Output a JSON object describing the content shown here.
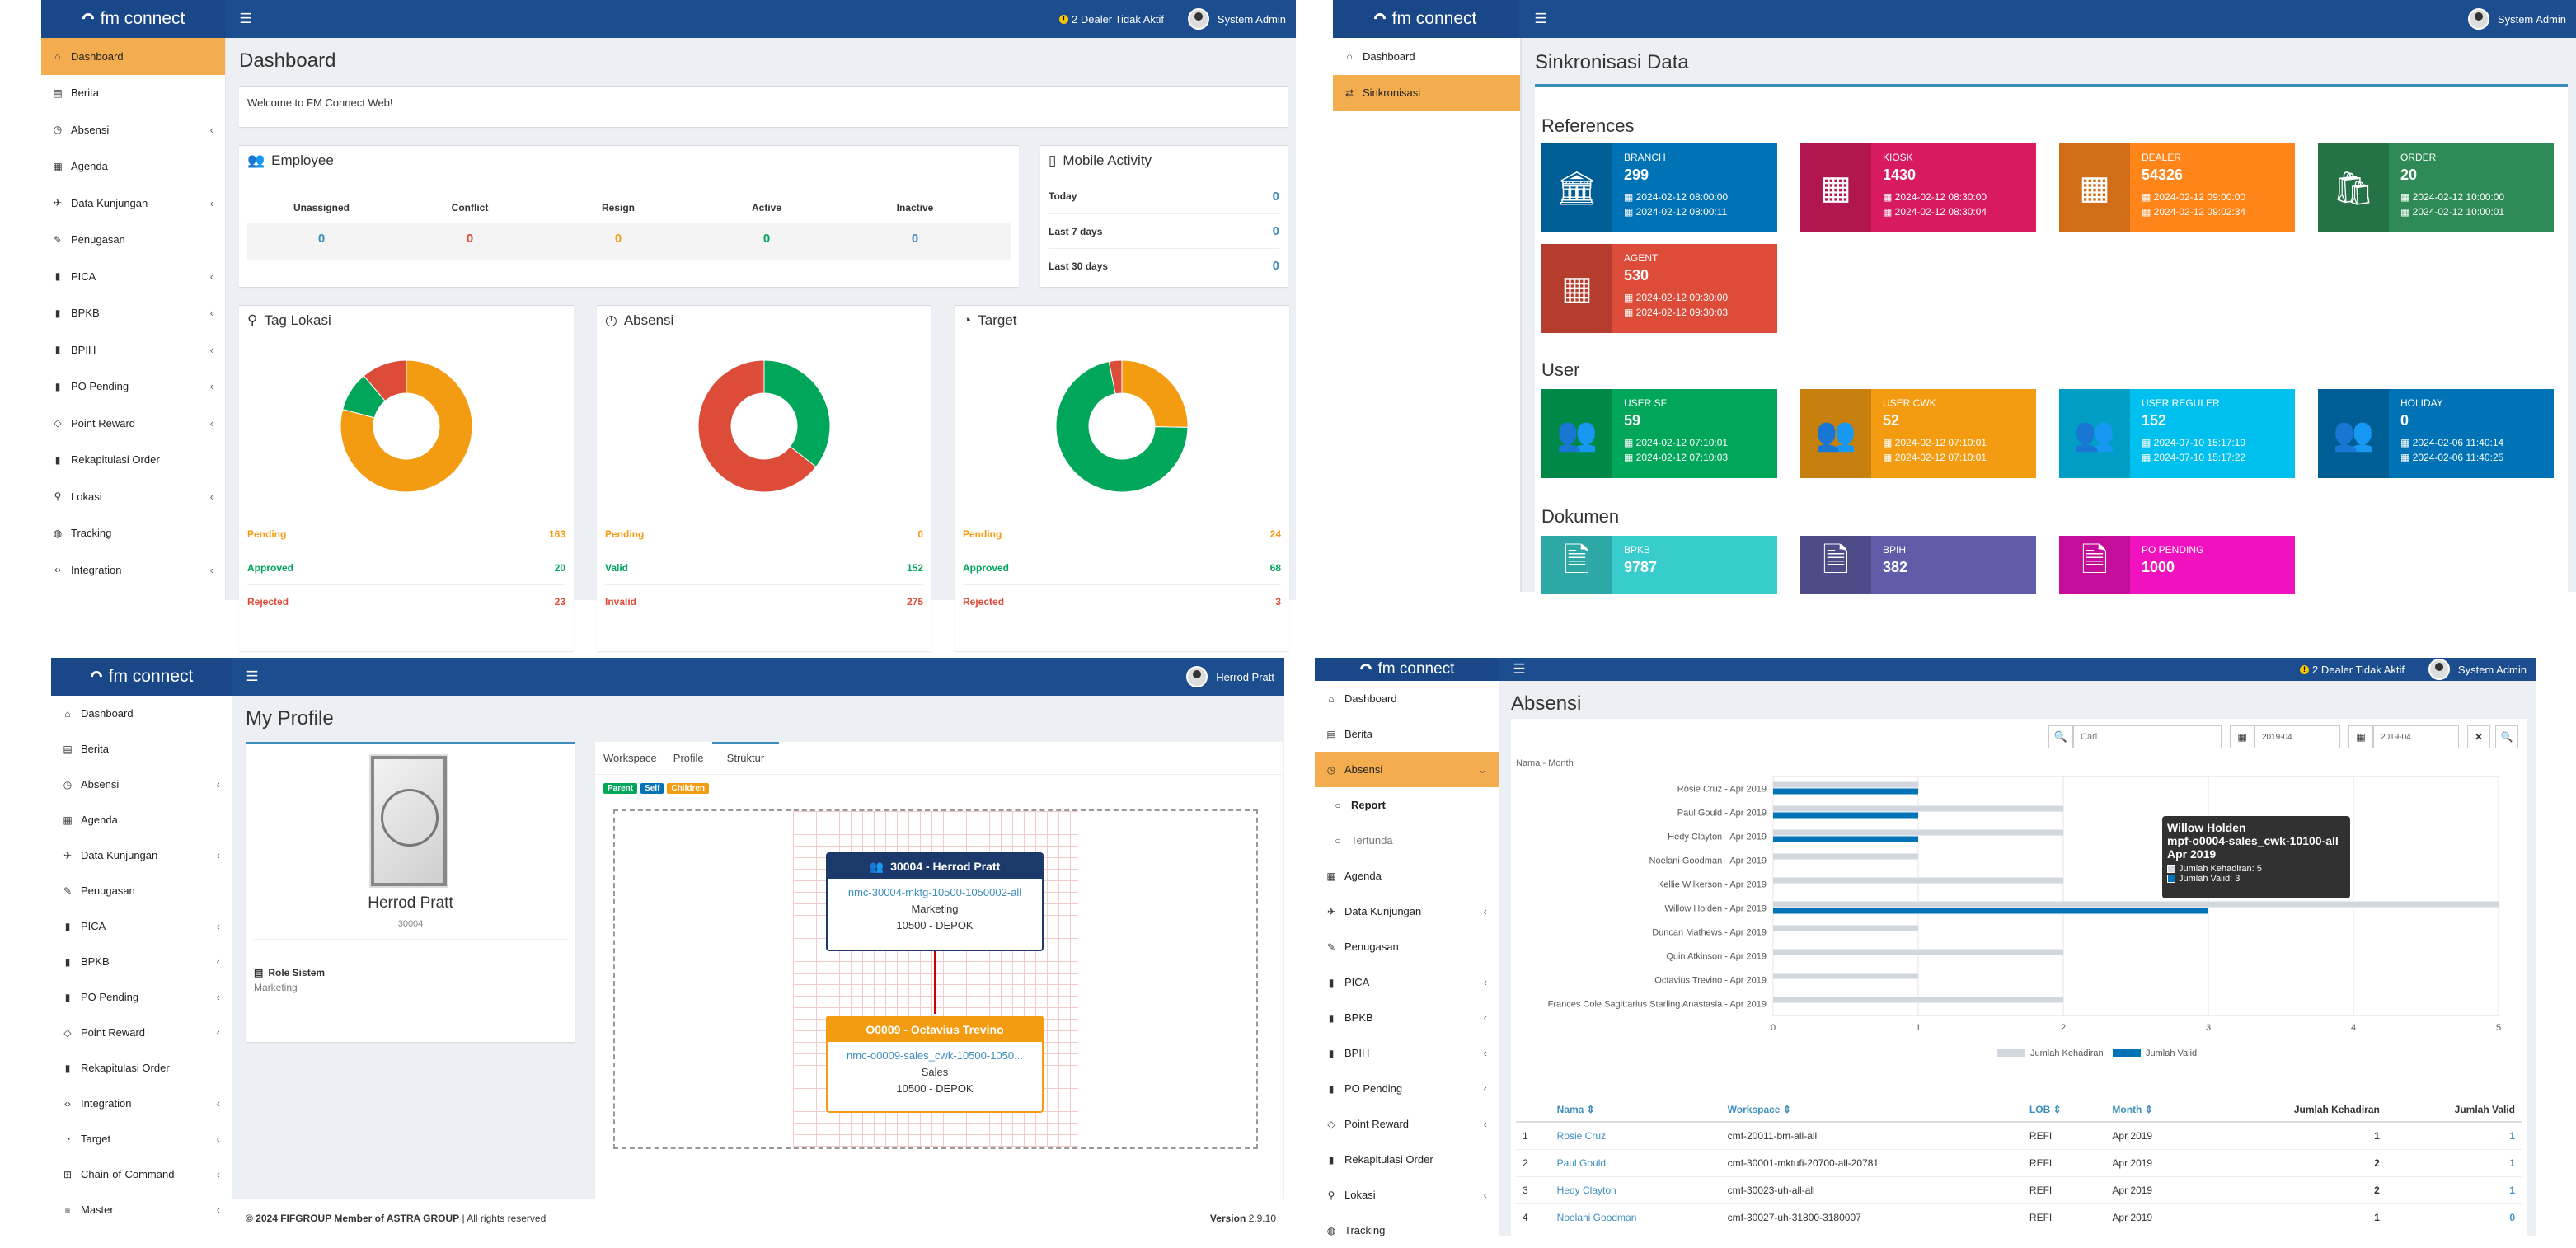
{
  "brand": "fm connect",
  "dashboard": {
    "notif": "2 Dealer Tidak Aktif",
    "user": "System Admin",
    "menu": [
      {
        "label": "Dashboard",
        "icon": "home-icon",
        "chev": false,
        "active": true
      },
      {
        "label": "Berita",
        "icon": "newspaper-icon",
        "chev": false
      },
      {
        "label": "Absensi",
        "icon": "clock-icon",
        "chev": true
      },
      {
        "label": "Agenda",
        "icon": "calendar-icon",
        "chev": false
      },
      {
        "label": "Data Kunjungan",
        "icon": "plane-icon",
        "chev": true
      },
      {
        "label": "Penugasan",
        "icon": "edit-icon",
        "chev": false
      },
      {
        "label": "PICA",
        "icon": "book-icon",
        "chev": true
      },
      {
        "label": "BPKB",
        "icon": "book-icon",
        "chev": true
      },
      {
        "label": "BPIH",
        "icon": "book-icon",
        "chev": true
      },
      {
        "label": "PO Pending",
        "icon": "book-icon",
        "chev": true
      },
      {
        "label": "Point Reward",
        "icon": "diamond-icon",
        "chev": true
      },
      {
        "label": "Rekapitulasi Order",
        "icon": "book-icon",
        "chev": false
      },
      {
        "label": "Lokasi",
        "icon": "map-marker-icon",
        "chev": true
      },
      {
        "label": "Tracking",
        "icon": "globe-icon",
        "chev": false
      },
      {
        "label": "Integration",
        "icon": "code-icon",
        "chev": true
      }
    ],
    "title": "Dashboard",
    "welcome": "Welcome to FM Connect Web!",
    "employee": {
      "title": "Employee",
      "cols": [
        "Unassigned",
        "Conflict",
        "Resign",
        "Active",
        "Inactive"
      ],
      "values": [
        "0",
        "0",
        "0",
        "0",
        "0"
      ]
    },
    "mobile": {
      "title": "Mobile Activity",
      "rows": [
        {
          "label": "Today",
          "value": "0"
        },
        {
          "label": "Last 7 days",
          "value": "0"
        },
        {
          "label": "Last 30 days",
          "value": "0"
        }
      ]
    },
    "donuts": [
      {
        "title": "Tag Lokasi",
        "icon": "map-marker-icon",
        "slices": [
          {
            "label": "Pending",
            "value": 163,
            "color": "#f39c12"
          },
          {
            "label": "Approved",
            "value": 20,
            "color": "#00a65a"
          },
          {
            "label": "Rejected",
            "value": 23,
            "color": "#dd4b39"
          }
        ]
      },
      {
        "title": "Absensi",
        "icon": "clock-icon",
        "slices": [
          {
            "label": "Pending",
            "value": 0,
            "color": "#f39c12"
          },
          {
            "label": "Valid",
            "value": 152,
            "color": "#00a65a"
          },
          {
            "label": "Invalid",
            "value": 275,
            "color": "#dd4b39"
          }
        ]
      },
      {
        "title": "Target",
        "icon": "dashboard-icon",
        "slices": [
          {
            "label": "Pending",
            "value": 24,
            "color": "#f39c12"
          },
          {
            "label": "Approved",
            "value": 68,
            "color": "#00a65a"
          },
          {
            "label": "Rejected",
            "value": 3,
            "color": "#dd4b39"
          }
        ]
      }
    ]
  },
  "sync": {
    "user": "System Admin",
    "menu": [
      {
        "label": "Dashboard",
        "icon": "home-icon"
      },
      {
        "label": "Sinkronisasi",
        "icon": "exchange-icon",
        "active": true
      }
    ],
    "title": "Sinkronisasi Data",
    "sections": [
      {
        "title": "References",
        "tiles": [
          {
            "name": "BRANCH",
            "num": "299",
            "d1": "2024-02-12 08:00:00",
            "d2": "2024-02-12 08:00:11",
            "color": "#0073b7",
            "icon": "bank-icon"
          },
          {
            "name": "KIOSK",
            "num": "1430",
            "d1": "2024-02-12 08:30:00",
            "d2": "2024-02-12 08:30:04",
            "color": "#d81b60",
            "icon": "building-icon"
          },
          {
            "name": "DEALER",
            "num": "54326",
            "d1": "2024-02-12 09:00:00",
            "d2": "2024-02-12 09:02:34",
            "color": "#ff851b",
            "icon": "building-icon"
          },
          {
            "name": "ORDER",
            "num": "20",
            "d1": "2024-02-12 10:00:00",
            "d2": "2024-02-12 10:00:01",
            "color": "#2e8b57",
            "icon": "shopping-bag-icon"
          },
          {
            "name": "AGENT",
            "num": "530",
            "d1": "2024-02-12 09:30:00",
            "d2": "2024-02-12 09:30:03",
            "color": "#dd4b39",
            "icon": "building-icon"
          }
        ]
      },
      {
        "title": "User",
        "tiles": [
          {
            "name": "USER SF",
            "num": "59",
            "d1": "2024-02-12 07:10:01",
            "d2": "2024-02-12 07:10:03",
            "color": "#00a65a",
            "icon": "users-icon"
          },
          {
            "name": "USER CWK",
            "num": "52",
            "d1": "2024-02-12 07:10:01",
            "d2": "2024-02-12 07:10:01",
            "color": "#f39c12",
            "icon": "users-icon"
          },
          {
            "name": "USER REGULER",
            "num": "152",
            "d1": "2024-07-10 15:17:19",
            "d2": "2024-07-10 15:17:22",
            "color": "#00c0ef",
            "icon": "users-icon"
          },
          {
            "name": "HOLIDAY",
            "num": "0",
            "d1": "2024-02-06 11:40:14",
            "d2": "2024-02-06 11:40:25",
            "color": "#0073b7",
            "icon": "users-icon"
          }
        ]
      },
      {
        "title": "Dokumen",
        "tiles": [
          {
            "name": "BPKB",
            "num": "9787",
            "color": "#39cccc",
            "icon": "file-icon"
          },
          {
            "name": "BPIH",
            "num": "382",
            "color": "#605ca8",
            "icon": "file-icon"
          },
          {
            "name": "PO PENDING",
            "num": "1000",
            "color": "#f012be",
            "icon": "file-icon"
          }
        ]
      }
    ]
  },
  "profile": {
    "user": "Herrod Pratt",
    "menu": [
      {
        "label": "Dashboard",
        "icon": "home-icon"
      },
      {
        "label": "Berita",
        "icon": "newspaper-icon"
      },
      {
        "label": "Absensi",
        "icon": "clock-icon",
        "chev": true
      },
      {
        "label": "Agenda",
        "icon": "calendar-icon"
      },
      {
        "label": "Data Kunjungan",
        "icon": "plane-icon",
        "chev": true
      },
      {
        "label": "Penugasan",
        "icon": "edit-icon"
      },
      {
        "label": "PICA",
        "icon": "book-icon",
        "chev": true
      },
      {
        "label": "BPKB",
        "icon": "book-icon",
        "chev": true
      },
      {
        "label": "PO Pending",
        "icon": "book-icon",
        "chev": true
      },
      {
        "label": "Point Reward",
        "icon": "diamond-icon",
        "chev": true
      },
      {
        "label": "Rekapitulasi Order",
        "icon": "book-icon"
      },
      {
        "label": "Integration",
        "icon": "code-icon",
        "chev": true
      },
      {
        "label": "Target",
        "icon": "dashboard-icon",
        "chev": true
      },
      {
        "label": "Chain-of-Command",
        "icon": "sitemap-icon",
        "chev": true
      },
      {
        "label": "Master",
        "icon": "database-icon",
        "chev": true
      }
    ],
    "title": "My Profile",
    "name": "Herrod Pratt",
    "id": "30004",
    "role_label": "Role Sistem",
    "role_value": "Marketing",
    "tabs": [
      "Workspace",
      "Profile",
      "Struktur"
    ],
    "legend": [
      {
        "label": "Parent",
        "color": "#00a65a"
      },
      {
        "label": "Self",
        "color": "#0073b7"
      },
      {
        "label": "Children",
        "color": "#f39c12"
      }
    ],
    "node1": {
      "title": "30004 - Herrod Pratt",
      "ws": "nmc-30004-mktg-10500-1050002-all",
      "dept": "Marketing",
      "loc": "10500 - DEPOK"
    },
    "node2": {
      "title": "O0009 - Octavius Trevino",
      "ws": "nmc-o0009-sales_cwk-10500-1050...",
      "dept": "Sales",
      "loc": "10500 - DEPOK"
    },
    "footer_left": "© 2024 FIFGROUP Member of ASTRA GROUP",
    "footer_right_suffix": "| All rights reserved",
    "version_label": "Version",
    "version": "2.9.10"
  },
  "absensi": {
    "notif": "2 Dealer Tidak Aktif",
    "user": "System Admin",
    "menu": [
      {
        "label": "Dashboard",
        "icon": "home-icon"
      },
      {
        "label": "Berita",
        "icon": "newspaper-icon"
      },
      {
        "label": "Absensi",
        "icon": "clock-icon",
        "chev": true,
        "active": true
      },
      {
        "label": "Report",
        "icon": "circle-icon",
        "sub": true,
        "bold": true
      },
      {
        "label": "Tertunda",
        "icon": "circle-icon",
        "sub": true
      },
      {
        "label": "Agenda",
        "icon": "calendar-icon"
      },
      {
        "label": "Data Kunjungan",
        "icon": "plane-icon",
        "chev": true
      },
      {
        "label": "Penugasan",
        "icon": "edit-icon"
      },
      {
        "label": "PICA",
        "icon": "book-icon",
        "chev": true
      },
      {
        "label": "BPKB",
        "icon": "book-icon",
        "chev": true
      },
      {
        "label": "BPIH",
        "icon": "book-icon",
        "chev": true
      },
      {
        "label": "PO Pending",
        "icon": "book-icon",
        "chev": true
      },
      {
        "label": "Point Reward",
        "icon": "diamond-icon",
        "chev": true
      },
      {
        "label": "Rekapitulasi Order",
        "icon": "book-icon"
      },
      {
        "label": "Lokasi",
        "icon": "map-marker-icon",
        "chev": true
      },
      {
        "label": "Tracking",
        "icon": "globe-icon"
      }
    ],
    "title": "Absensi",
    "search_placeholder": "Cari",
    "date_from": "2019-04",
    "date_to": "2019-04",
    "chart_caption": "Nama - Month",
    "tooltip": {
      "l1": "Willow Holden",
      "l2": "mpf-o0004-sales_cwk-10100-all",
      "l3": "Apr 2019",
      "k": "Jumlah Kehadiran: 5",
      "v": "Jumlah Valid: 3"
    },
    "table": {
      "headers": [
        "Nama",
        "Workspace",
        "LOB",
        "Month",
        "Jumlah Kehadiran",
        "Jumlah Valid"
      ],
      "rows": [
        [
          "1",
          "Rosie Cruz",
          "cmf-20011-bm-all-all",
          "REFI",
          "Apr 2019",
          "1",
          "1"
        ],
        [
          "2",
          "Paul Gould",
          "cmf-30001-mktufi-20700-all-20781",
          "REFI",
          "Apr 2019",
          "2",
          "1"
        ],
        [
          "3",
          "Hedy Clayton",
          "cmf-30023-uh-all-all",
          "REFI",
          "Apr 2019",
          "2",
          "1"
        ],
        [
          "4",
          "Noelani Goodman",
          "cmf-30027-uh-31800-3180007",
          "REFI",
          "Apr 2019",
          "1",
          "0"
        ]
      ]
    }
  },
  "chart_data": {
    "type": "bar",
    "orientation": "horizontal",
    "categories": [
      "Rosie Cruz - Apr 2019",
      "Paul Gould - Apr 2019",
      "Hedy Clayton - Apr 2019",
      "Noelani Goodman - Apr 2019",
      "Kellie Wilkerson - Apr 2019",
      "Willow Holden - Apr 2019",
      "Duncan Mathews - Apr 2019",
      "Quin Atkinson - Apr 2019",
      "Octavius Trevino - Apr 2019",
      "Frances Cole Sagittarius Starling Anastasia - Apr 2019"
    ],
    "series": [
      {
        "name": "Jumlah Kehadiran",
        "color": "#d2d6de",
        "values": [
          1,
          2,
          2,
          1,
          2,
          5,
          1,
          2,
          1,
          2
        ]
      },
      {
        "name": "Jumlah Valid",
        "color": "#0073b7",
        "values": [
          1,
          1,
          1,
          0,
          0,
          3,
          0,
          0,
          0,
          0
        ]
      }
    ],
    "xlim": [
      0,
      5
    ],
    "xticks": [
      "0",
      "1",
      "2",
      "3",
      "4",
      "5"
    ],
    "legend": "bottom"
  }
}
